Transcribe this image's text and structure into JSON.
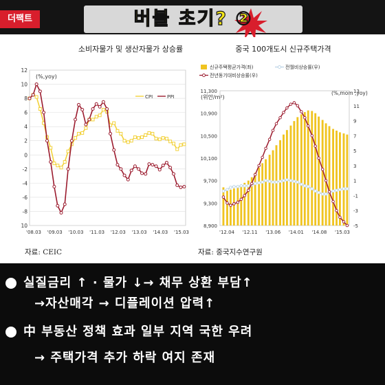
{
  "header": {
    "brand": "더팩트",
    "title": "버블 초기? ②"
  },
  "charts": {
    "left": {
      "title": "소비자물가 및 생산자물가 상승률",
      "unit": "(%,yoy)",
      "source": "자료: CEIC"
    },
    "right": {
      "title": "중국 100개도시 신규주택가격",
      "unit_left": "(위안/m²)",
      "unit_right": "(%,mom ,yoy)",
      "source": "자료: 중국지수연구원"
    }
  },
  "chart_data": [
    {
      "type": "line",
      "title": "소비자물가 및 생산자물가 상승률",
      "ylabel": "(%,yoy)",
      "ylim": [
        -10,
        12
      ],
      "yticks": [
        -10,
        -8,
        -6,
        -4,
        -2,
        0,
        2,
        4,
        6,
        8,
        10,
        12
      ],
      "xlim": [
        2008.0,
        2015.4
      ],
      "xticks": [
        "'08.03",
        "'09.03",
        "'10.03",
        "'11.03",
        "'12.03",
        "'13.03",
        "'14.03",
        "'15.03"
      ],
      "legend": "top-right",
      "series": [
        {
          "name": "CPI",
          "color": "#f2d13a",
          "marker": "square",
          "x": [
            2008.0,
            2008.17,
            2008.33,
            2008.5,
            2008.67,
            2008.83,
            2009.0,
            2009.17,
            2009.33,
            2009.5,
            2009.67,
            2009.83,
            2010.0,
            2010.17,
            2010.33,
            2010.5,
            2010.67,
            2010.83,
            2011.0,
            2011.17,
            2011.33,
            2011.5,
            2011.67,
            2011.83,
            2012.0,
            2012.17,
            2012.33,
            2012.5,
            2012.67,
            2012.83,
            2013.0,
            2013.17,
            2013.33,
            2013.5,
            2013.67,
            2013.83,
            2014.0,
            2014.17,
            2014.33,
            2014.5,
            2014.67,
            2014.83,
            2015.0,
            2015.17,
            2015.33
          ],
          "y": [
            8.0,
            8.5,
            8.2,
            6.5,
            4.5,
            2.5,
            1.0,
            -1.2,
            -1.5,
            -1.8,
            -1.0,
            0.5,
            1.5,
            2.4,
            3.0,
            3.1,
            3.8,
            5.0,
            5.0,
            5.4,
            5.6,
            6.4,
            6.1,
            4.2,
            4.5,
            3.4,
            3.0,
            2.0,
            1.8,
            2.0,
            2.5,
            2.4,
            2.5,
            2.8,
            3.1,
            3.0,
            2.3,
            2.2,
            2.4,
            2.3,
            1.9,
            1.6,
            0.8,
            1.4,
            1.5
          ]
        },
        {
          "name": "PPI",
          "color": "#9b1b2e",
          "marker": "circle",
          "x": [
            2008.0,
            2008.17,
            2008.33,
            2008.5,
            2008.67,
            2008.83,
            2009.0,
            2009.17,
            2009.33,
            2009.5,
            2009.67,
            2009.83,
            2010.0,
            2010.17,
            2010.33,
            2010.5,
            2010.67,
            2010.83,
            2011.0,
            2011.17,
            2011.33,
            2011.5,
            2011.67,
            2011.83,
            2012.0,
            2012.17,
            2012.33,
            2012.5,
            2012.67,
            2012.83,
            2013.0,
            2013.17,
            2013.33,
            2013.5,
            2013.67,
            2013.83,
            2014.0,
            2014.17,
            2014.33,
            2014.5,
            2014.67,
            2014.83,
            2015.0,
            2015.17,
            2015.33
          ],
          "y": [
            8.0,
            8.5,
            10.0,
            9.0,
            6.0,
            2.0,
            -1.0,
            -4.5,
            -7.2,
            -8.2,
            -7.0,
            -2.0,
            2.0,
            5.0,
            7.1,
            6.4,
            4.3,
            5.0,
            6.5,
            7.2,
            6.8,
            7.5,
            6.5,
            3.0,
            0.7,
            -1.4,
            -2.0,
            -2.9,
            -3.5,
            -2.2,
            -1.6,
            -2.0,
            -2.6,
            -2.7,
            -1.3,
            -1.4,
            -1.6,
            -2.1,
            -1.5,
            -1.1,
            -1.8,
            -2.7,
            -4.3,
            -4.6,
            -4.5
          ]
        }
      ]
    },
    {
      "type": "bar",
      "title": "중국 100개도시 신규주택가격",
      "ylabel": "(위안/m²)",
      "y2label": "(%,mom ,yoy)",
      "ylim": [
        8900,
        11300
      ],
      "yticks": [
        8900,
        9300,
        9700,
        10100,
        10500,
        10900,
        11300
      ],
      "y2lim": [
        -5,
        13
      ],
      "y2ticks": [
        -5,
        -3,
        -1,
        1,
        3,
        5,
        7,
        9,
        11,
        13
      ],
      "xlim": [
        2012.25,
        2015.3
      ],
      "xticks": [
        "'12.04",
        "'12.11",
        "'13.06",
        "'14.01",
        "'14.08",
        "'15.03"
      ],
      "legend": "top",
      "series": [
        {
          "name": "신규주택평균가격(좌)",
          "color": "#f0c420",
          "axis": "left",
          "x": [
            2012.33,
            2012.42,
            2012.5,
            2012.58,
            2012.67,
            2012.75,
            2012.83,
            2012.92,
            2013.0,
            2013.08,
            2013.17,
            2013.25,
            2013.33,
            2013.42,
            2013.5,
            2013.58,
            2013.67,
            2013.75,
            2013.83,
            2013.92,
            2014.0,
            2014.08,
            2014.17,
            2014.25,
            2014.33,
            2014.42,
            2014.5,
            2014.58,
            2014.67,
            2014.75,
            2014.83,
            2014.92,
            2015.0,
            2015.08,
            2015.17,
            2015.25
          ],
          "values": [
            9580,
            9560,
            9540,
            9560,
            9590,
            9620,
            9660,
            9700,
            9760,
            9840,
            9930,
            10010,
            10080,
            10160,
            10240,
            10330,
            10420,
            10520,
            10600,
            10680,
            10760,
            10830,
            10880,
            10920,
            10950,
            10940,
            10900,
            10840,
            10780,
            10720,
            10670,
            10620,
            10590,
            10560,
            10540,
            10520
          ]
        },
        {
          "name": "전월비상승률(우)",
          "color": "#bcd4e6",
          "axis": "right",
          "marker": "circle",
          "x": [
            2012.33,
            2012.42,
            2012.5,
            2012.58,
            2012.67,
            2012.75,
            2012.83,
            2012.92,
            2013.0,
            2013.08,
            2013.17,
            2013.25,
            2013.33,
            2013.42,
            2013.5,
            2013.58,
            2013.67,
            2013.75,
            2013.83,
            2013.92,
            2014.0,
            2014.08,
            2014.17,
            2014.25,
            2014.33,
            2014.42,
            2014.5,
            2014.58,
            2014.67,
            2014.75,
            2014.83,
            2014.92,
            2015.0,
            2015.08,
            2015.17,
            2015.25
          ],
          "values": [
            -0.4,
            -0.2,
            0.1,
            0.2,
            0.2,
            0.3,
            0.3,
            0.3,
            0.4,
            0.6,
            0.7,
            0.8,
            1.0,
            0.9,
            0.8,
            0.8,
            0.9,
            1.0,
            1.1,
            1.0,
            0.9,
            0.8,
            0.5,
            0.3,
            0.2,
            -0.1,
            -0.4,
            -0.6,
            -0.8,
            -0.8,
            -0.6,
            -0.4,
            -0.3,
            -0.2,
            -0.1,
            -0.1
          ]
        },
        {
          "name": "전년동기대비상승률(우)",
          "color": "#9b1b2e",
          "axis": "right",
          "marker": "circle",
          "x": [
            2012.33,
            2012.42,
            2012.5,
            2012.58,
            2012.67,
            2012.75,
            2012.83,
            2012.92,
            2013.0,
            2013.08,
            2013.17,
            2013.25,
            2013.33,
            2013.42,
            2013.5,
            2013.58,
            2013.67,
            2013.75,
            2013.83,
            2013.92,
            2014.0,
            2014.08,
            2014.17,
            2014.25,
            2014.33,
            2014.42,
            2014.5,
            2014.58,
            2014.67,
            2014.75,
            2014.83,
            2014.92,
            2015.0,
            2015.08,
            2015.17,
            2015.25
          ],
          "values": [
            -1.2,
            -2.0,
            -2.3,
            -2.1,
            -1.9,
            -1.5,
            -1.0,
            -0.3,
            0.6,
            1.8,
            3.0,
            4.1,
            5.3,
            6.5,
            7.7,
            8.6,
            9.4,
            10.1,
            10.7,
            11.2,
            11.4,
            11.0,
            10.2,
            9.4,
            8.3,
            7.0,
            5.6,
            4.0,
            2.5,
            1.0,
            -0.5,
            -1.8,
            -3.0,
            -3.9,
            -4.5,
            -5.0
          ]
        }
      ]
    }
  ],
  "bullets": [
    {
      "line1": "실질금리 ↑ · 물가 ↓→ 채무 상환 부담↑",
      "line2": "→자산매각 → 디플레이션 압력↑"
    },
    {
      "line1": "中 부동산 정책 효과 일부 지역 국한 우려",
      "line2": "→ 주택가격 추가 하락 여지 존재"
    }
  ]
}
